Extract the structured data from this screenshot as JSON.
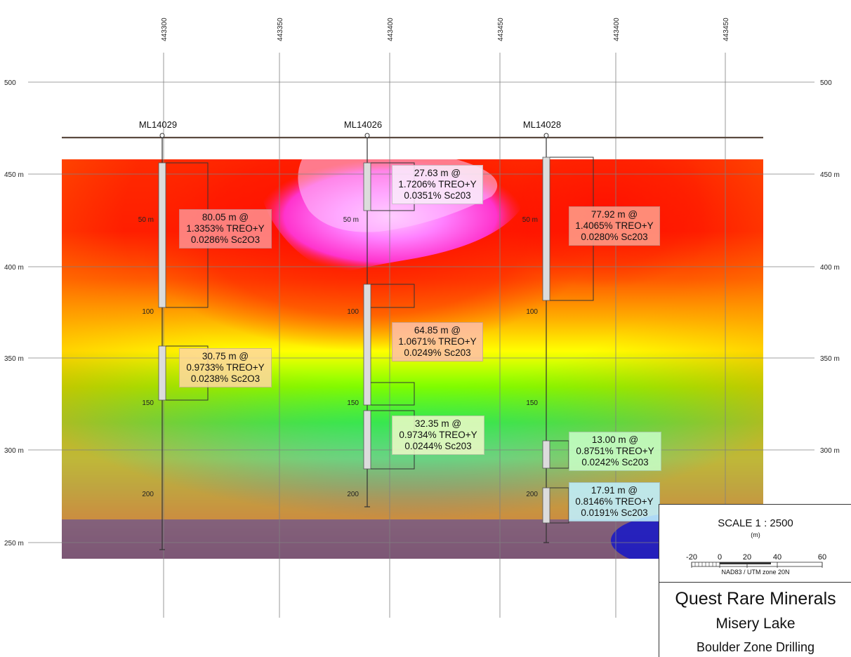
{
  "easting_ticks": [
    "443300",
    "443350",
    "443400",
    "443450",
    "443400",
    "443450"
  ],
  "elevation_ticks": [
    "500",
    "450 m",
    "400 m",
    "350 m",
    "300 m",
    "250 m"
  ],
  "elevation_ticks_right": [
    "500",
    "450 m",
    "400 m",
    "350 m",
    "300 m"
  ],
  "drillholes": [
    {
      "name": "ML14029",
      "depth_labels": [
        "50 m",
        "100",
        "150",
        "200"
      ]
    },
    {
      "name": "ML14026",
      "depth_labels": [
        "50 m",
        "100",
        "150",
        "200"
      ]
    },
    {
      "name": "ML14028",
      "depth_labels": [
        "50 m",
        "100",
        "150",
        "200"
      ]
    }
  ],
  "intercepts": [
    {
      "lines": [
        "80.05 m @",
        "1.3353% TREO+Y",
        "0.0286% Sc2O3"
      ],
      "bg": "rgba(255,150,150,0.82)"
    },
    {
      "lines": [
        "30.75 m @",
        "0.9733% TREO+Y",
        "0.0238% Sc2O3"
      ],
      "bg": "rgba(255,215,160,0.85)"
    },
    {
      "lines": [
        "27.63 m @",
        "1.7206% TREO+Y",
        "0.0351% Sc203"
      ],
      "bg": "rgba(250,235,250,0.88)"
    },
    {
      "lines": [
        "64.85 m @",
        "1.0671% TREO+Y",
        "0.0249% Sc203"
      ],
      "bg": "rgba(255,190,170,0.85)"
    },
    {
      "lines": [
        "32.35 m @",
        "0.9734% TREO+Y",
        "0.0244% Sc203"
      ],
      "bg": "rgba(240,250,200,0.85)"
    },
    {
      "lines": [
        "77.92 m @",
        "1.4065% TREO+Y",
        "0.0280% Sc203"
      ],
      "bg": "rgba(255,160,140,0.85)"
    },
    {
      "lines": [
        "13.00 m @",
        "0.8751% TREO+Y",
        "0.0242% Sc203"
      ],
      "bg": "rgba(200,255,200,0.85)"
    },
    {
      "lines": [
        "17.91 m @",
        "0.8146% TREO+Y",
        "0.0191% Sc203"
      ],
      "bg": "rgba(190,240,255,0.88)"
    }
  ],
  "scale": {
    "title": "SCALE  1 : 2500",
    "unit": "(m)",
    "bar_labels": [
      "-20",
      "0",
      "20",
      "40",
      "60"
    ],
    "projection": "NAD83 / UTM zone 20N"
  },
  "title_block": {
    "company": "Quest Rare Minerals",
    "project": "Misery Lake",
    "zone": "Boulder Zone Drilling"
  }
}
